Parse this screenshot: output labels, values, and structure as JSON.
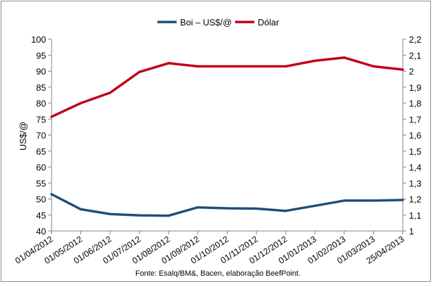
{
  "chart_data": {
    "type": "line",
    "dual_axis": true,
    "categories": [
      "01/04/2012",
      "01/05/2012",
      "01/06/2012",
      "01/07/2012",
      "01/08/2012",
      "01/09/2012",
      "01/10/2012",
      "01/11/2012",
      "01/12/2012",
      "01/01/2013",
      "01/02/2013",
      "01/03/2013",
      "25/04/2013"
    ],
    "series": [
      {
        "name": "Boi – US$/@",
        "axis": "left",
        "color": "#1f4e79",
        "values": [
          51.5,
          46.8,
          45.3,
          44.9,
          44.8,
          47.4,
          47.1,
          47.0,
          46.3,
          47.9,
          49.5,
          49.5,
          49.7
        ]
      },
      {
        "name": "Dólar",
        "axis": "right",
        "color": "#c0001a",
        "values": [
          1.715,
          1.8,
          1.865,
          1.995,
          2.05,
          2.03,
          2.03,
          2.03,
          2.03,
          2.065,
          2.085,
          2.03,
          2.01
        ]
      }
    ],
    "ylabel": "US$/@",
    "ylim": [
      40,
      100
    ],
    "yticks": [
      "40",
      "45",
      "50",
      "55",
      "60",
      "65",
      "70",
      "75",
      "80",
      "85",
      "90",
      "95",
      "100"
    ],
    "y2lim": [
      1,
      2.2
    ],
    "y2ticks": [
      "1",
      "1,1",
      "1,2",
      "1,3",
      "1,4",
      "1,5",
      "1,6",
      "1,7",
      "1,8",
      "1,9",
      "2",
      "2,1",
      "2,2"
    ],
    "legend_position": "top-center",
    "grid": false,
    "source": "Fonte: Esalq/BM&, Bacen, elaboração BeefPoint."
  }
}
